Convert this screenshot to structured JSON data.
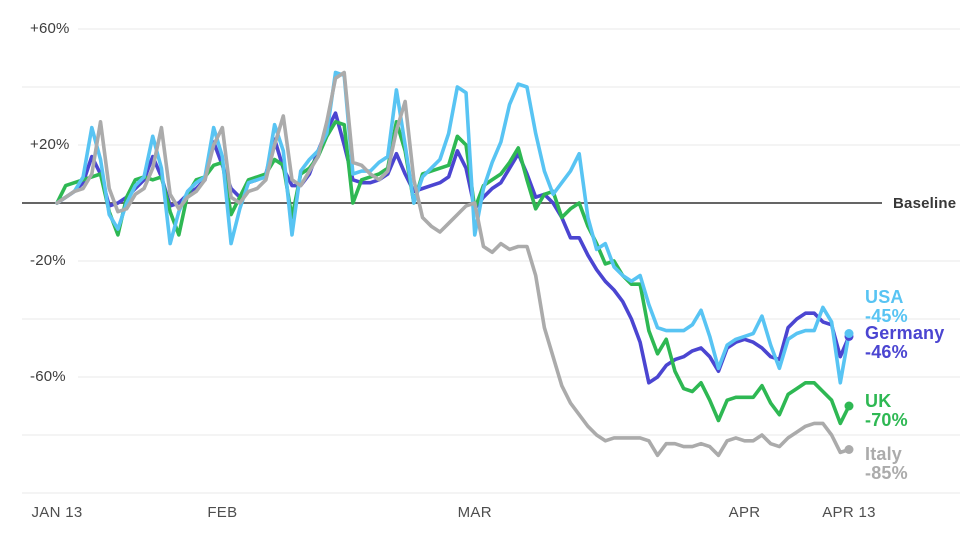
{
  "chart_data": {
    "type": "line",
    "title": "",
    "baseline": {
      "label": "Baseline",
      "value": 0
    },
    "grid": true,
    "legend_position": "right",
    "y_ticks": [
      {
        "label": "+60%",
        "value": 60
      },
      {
        "label": "+20%",
        "value": 20
      },
      {
        "label": "-20%",
        "value": -20
      },
      {
        "label": "-60%",
        "value": -60
      }
    ],
    "y_gridlines_unlabeled": [
      40,
      -40,
      -80,
      -100
    ],
    "ylim": [
      -100,
      65
    ],
    "x_days_span": 91,
    "x_ticks": [
      {
        "label": "JAN 13",
        "day": 0
      },
      {
        "label": "FEB",
        "day": 19
      },
      {
        "label": "MAR",
        "day": 48
      },
      {
        "label": "APR",
        "day": 79
      },
      {
        "label": "APR 13",
        "day": 91
      }
    ],
    "series": [
      {
        "name": "Germany",
        "final_label": "-46%",
        "color": "#4b45d1",
        "values": [
          0,
          2,
          4,
          7,
          16,
          10,
          -1,
          0,
          2,
          5,
          8,
          16,
          9,
          -1,
          0,
          3,
          5,
          8,
          21,
          13,
          5,
          2,
          7,
          8,
          10,
          22,
          12,
          6,
          6,
          10,
          18,
          25,
          31,
          20,
          8,
          7,
          7,
          8,
          10,
          17,
          10,
          4,
          5,
          6,
          7,
          9,
          18,
          12,
          -2,
          2,
          5,
          7,
          12,
          17,
          10,
          2,
          3,
          0,
          -5,
          -12,
          -12,
          -18,
          -23,
          -27,
          -30,
          -34,
          -40,
          -48,
          -62,
          -60,
          -56,
          -54,
          -53,
          -51,
          -50,
          -53,
          -58,
          -50,
          -48,
          -47,
          -48,
          -50,
          -53,
          -54,
          -43,
          -40,
          -38,
          -38,
          -41,
          -42,
          -53,
          -46
        ]
      },
      {
        "name": "UK",
        "final_label": "-70%",
        "color": "#2eb853",
        "values": [
          0,
          6,
          7,
          8,
          9,
          10,
          -3,
          -11,
          2,
          8,
          9,
          8,
          9,
          -3,
          -11,
          3,
          8,
          9,
          13,
          14,
          -4,
          2,
          8,
          9,
          10,
          15,
          13,
          -5,
          10,
          12,
          16,
          23,
          28,
          27,
          0,
          8,
          9,
          10,
          12,
          28,
          18,
          0,
          10,
          11,
          12,
          13,
          23,
          20,
          -2,
          6,
          8,
          10,
          14,
          19,
          8,
          -2,
          3,
          4,
          -5,
          -2,
          0,
          -8,
          -14,
          -21,
          -20,
          -25,
          -28,
          -28,
          -44,
          -52,
          -47,
          -58,
          -64,
          -65,
          -62,
          -68,
          -75,
          -68,
          -67,
          -67,
          -67,
          -63,
          -69,
          -73,
          -66,
          -64,
          -62,
          -62,
          -65,
          -68,
          -76,
          -70
        ]
      },
      {
        "name": "USA",
        "final_label": "-45%",
        "color": "#58c4f3",
        "values": [
          0,
          2,
          4,
          9,
          26,
          15,
          -4,
          -9,
          0,
          6,
          9,
          23,
          12,
          -14,
          -3,
          4,
          7,
          9,
          26,
          16,
          -14,
          -2,
          7,
          8,
          9,
          27,
          18,
          -11,
          11,
          15,
          18,
          24,
          45,
          44,
          10,
          11,
          11,
          14,
          16,
          39,
          20,
          0,
          9,
          12,
          15,
          24,
          40,
          38,
          -11,
          5,
          14,
          21,
          34,
          41,
          40,
          24,
          11,
          3,
          7,
          11,
          17,
          -5,
          -16,
          -14,
          -22,
          -25,
          -27,
          -25,
          -35,
          -43,
          -44,
          -44,
          -44,
          -42,
          -37,
          -46,
          -57,
          -49,
          -47,
          -46,
          -45,
          -39,
          -49,
          -57,
          -47,
          -45,
          -44,
          -44,
          -36,
          -41,
          -62,
          -45
        ]
      },
      {
        "name": "Italy",
        "final_label": "-85%",
        "color": "#ababab",
        "values": [
          0,
          2,
          4,
          5,
          10,
          28,
          5,
          -3,
          -2,
          3,
          5,
          12,
          26,
          3,
          -2,
          2,
          4,
          8,
          20,
          26,
          2,
          0,
          4,
          5,
          8,
          20,
          30,
          8,
          6,
          11,
          16,
          28,
          43,
          45,
          14,
          13,
          10,
          8,
          11,
          25,
          35,
          8,
          -5,
          -8,
          -10,
          -7,
          -4,
          -1,
          0,
          -15,
          -17,
          -14,
          -16,
          -15,
          -15,
          -25,
          -43,
          -53,
          -63,
          -69,
          -73,
          -77,
          -80,
          -82,
          -81,
          -81,
          -81,
          -81,
          -82,
          -87,
          -83,
          -83,
          -84,
          -84,
          -83,
          -84,
          -87,
          -82,
          -81,
          -82,
          -82,
          -80,
          -83,
          -84,
          -81,
          -79,
          -77,
          -76,
          -76,
          -80,
          -86,
          -85
        ]
      }
    ],
    "legend_order": [
      "USA",
      "Germany",
      "UK",
      "Italy"
    ],
    "colors": {
      "usa": "#58c4f3",
      "germany": "#4b45d1",
      "uk": "#2eb853",
      "italy": "#ababab",
      "baseline_line": "#4f4f4f",
      "gridline": "#eaeaea"
    }
  }
}
